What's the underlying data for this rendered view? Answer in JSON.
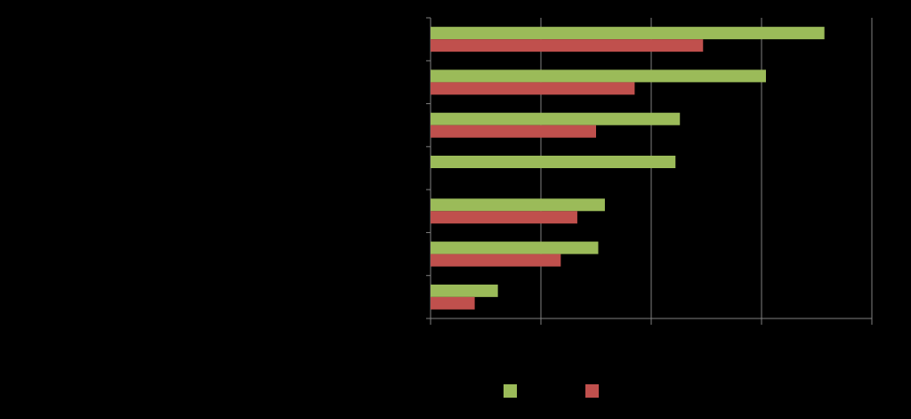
{
  "chart_data": {
    "type": "bar",
    "orientation": "horizontal",
    "categories": [
      "",
      "",
      "",
      "",
      "",
      "",
      ""
    ],
    "series": [
      {
        "values": [
          3.57,
          3.04,
          2.26,
          2.22,
          1.58,
          1.52,
          0.61
        ]
      },
      {
        "values": [
          2.47,
          1.85,
          1.5,
          0,
          1.33,
          1.18,
          0.4
        ]
      }
    ],
    "xlim": [
      0,
      4
    ],
    "x_ticks": [
      0,
      1,
      2,
      3,
      4
    ],
    "grid": true,
    "legend_position": "bottom",
    "colors": {
      "series_1": "#9BBB59",
      "series_2": "#C0504D",
      "grid": "#808080",
      "background": "#000000"
    }
  }
}
